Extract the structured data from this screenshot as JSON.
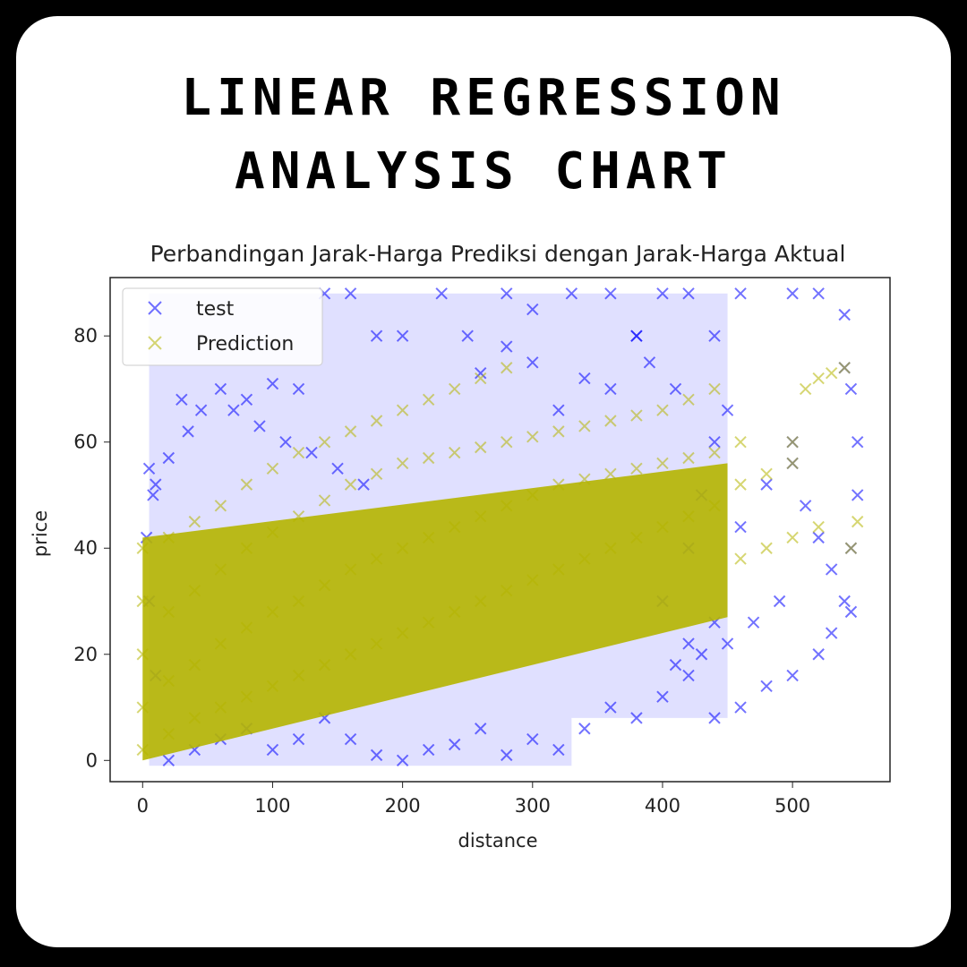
{
  "header": {
    "line1": "LINEAR REGRESSION",
    "line2": "ANALYSIS CHART"
  },
  "chart_data": {
    "type": "scatter",
    "title": "Perbandingan Jarak-Harga Prediksi dengan Jarak-Harga Aktual",
    "xlabel": "distance",
    "ylabel": "price",
    "xlim": [
      -25,
      575
    ],
    "ylim": [
      -4,
      91
    ],
    "xticks": [
      0,
      100,
      200,
      300,
      400,
      500
    ],
    "yticks": [
      0,
      20,
      40,
      60,
      80
    ],
    "marker": "x",
    "legend_position": "top-left",
    "series": [
      {
        "name": "test",
        "color": "#0000ff",
        "points": [
          [
            5,
            55
          ],
          [
            10,
            52
          ],
          [
            20,
            57
          ],
          [
            35,
            62
          ],
          [
            45,
            66
          ],
          [
            60,
            70
          ],
          [
            80,
            68
          ],
          [
            100,
            71
          ],
          [
            120,
            70
          ],
          [
            140,
            88
          ],
          [
            160,
            88
          ],
          [
            180,
            80
          ],
          [
            200,
            80
          ],
          [
            230,
            88
          ],
          [
            250,
            80
          ],
          [
            280,
            88
          ],
          [
            300,
            85
          ],
          [
            330,
            88
          ],
          [
            360,
            88
          ],
          [
            380,
            80
          ],
          [
            400,
            88
          ],
          [
            420,
            88
          ],
          [
            440,
            80
          ],
          [
            460,
            88
          ],
          [
            500,
            88
          ],
          [
            520,
            88
          ],
          [
            540,
            84
          ],
          [
            545,
            70
          ],
          [
            550,
            60
          ],
          [
            550,
            50
          ],
          [
            545,
            40
          ],
          [
            540,
            30
          ],
          [
            530,
            24
          ],
          [
            520,
            20
          ],
          [
            500,
            16
          ],
          [
            480,
            14
          ],
          [
            460,
            10
          ],
          [
            440,
            8
          ],
          [
            420,
            16
          ],
          [
            400,
            12
          ],
          [
            380,
            8
          ],
          [
            360,
            10
          ],
          [
            340,
            6
          ],
          [
            320,
            2
          ],
          [
            300,
            4
          ],
          [
            280,
            1
          ],
          [
            260,
            6
          ],
          [
            240,
            3
          ],
          [
            220,
            2
          ],
          [
            200,
            0
          ],
          [
            180,
            1
          ],
          [
            160,
            4
          ],
          [
            140,
            8
          ],
          [
            120,
            4
          ],
          [
            100,
            2
          ],
          [
            80,
            6
          ],
          [
            60,
            4
          ],
          [
            40,
            2
          ],
          [
            20,
            0
          ],
          [
            10,
            16
          ],
          [
            5,
            30
          ],
          [
            3,
            42
          ],
          [
            8,
            50
          ],
          [
            30,
            68
          ],
          [
            70,
            66
          ],
          [
            90,
            63
          ],
          [
            110,
            60
          ],
          [
            130,
            58
          ],
          [
            150,
            55
          ],
          [
            170,
            52
          ],
          [
            400,
            30
          ],
          [
            420,
            40
          ],
          [
            430,
            50
          ],
          [
            440,
            60
          ],
          [
            450,
            66
          ],
          [
            410,
            70
          ],
          [
            390,
            75
          ],
          [
            380,
            80
          ],
          [
            500,
            56
          ],
          [
            510,
            48
          ],
          [
            520,
            42
          ],
          [
            530,
            36
          ],
          [
            545,
            28
          ],
          [
            490,
            30
          ],
          [
            470,
            26
          ],
          [
            450,
            22
          ],
          [
            430,
            20
          ],
          [
            410,
            18
          ],
          [
            420,
            22
          ],
          [
            440,
            26
          ],
          [
            460,
            44
          ],
          [
            480,
            52
          ],
          [
            500,
            60
          ],
          [
            540,
            74
          ],
          [
            360,
            70
          ],
          [
            340,
            72
          ],
          [
            320,
            66
          ],
          [
            300,
            75
          ],
          [
            280,
            78
          ],
          [
            260,
            73
          ]
        ]
      },
      {
        "name": "Prediction",
        "color": "#b5b500",
        "points": [
          [
            0,
            2
          ],
          [
            0,
            10
          ],
          [
            0,
            20
          ],
          [
            0,
            30
          ],
          [
            0,
            40
          ],
          [
            20,
            5
          ],
          [
            20,
            15
          ],
          [
            20,
            28
          ],
          [
            20,
            42
          ],
          [
            40,
            8
          ],
          [
            40,
            18
          ],
          [
            40,
            32
          ],
          [
            40,
            45
          ],
          [
            60,
            10
          ],
          [
            60,
            22
          ],
          [
            60,
            36
          ],
          [
            60,
            48
          ],
          [
            80,
            12
          ],
          [
            80,
            25
          ],
          [
            80,
            40
          ],
          [
            80,
            52
          ],
          [
            100,
            14
          ],
          [
            100,
            28
          ],
          [
            100,
            43
          ],
          [
            100,
            55
          ],
          [
            120,
            16
          ],
          [
            120,
            30
          ],
          [
            120,
            46
          ],
          [
            120,
            58
          ],
          [
            140,
            18
          ],
          [
            140,
            33
          ],
          [
            140,
            49
          ],
          [
            140,
            60
          ],
          [
            160,
            20
          ],
          [
            160,
            36
          ],
          [
            160,
            52
          ],
          [
            160,
            62
          ],
          [
            180,
            22
          ],
          [
            180,
            38
          ],
          [
            180,
            54
          ],
          [
            180,
            64
          ],
          [
            200,
            24
          ],
          [
            200,
            40
          ],
          [
            200,
            56
          ],
          [
            200,
            66
          ],
          [
            220,
            26
          ],
          [
            220,
            42
          ],
          [
            220,
            57
          ],
          [
            220,
            68
          ],
          [
            240,
            28
          ],
          [
            240,
            44
          ],
          [
            240,
            58
          ],
          [
            240,
            70
          ],
          [
            260,
            30
          ],
          [
            260,
            46
          ],
          [
            260,
            59
          ],
          [
            260,
            72
          ],
          [
            280,
            32
          ],
          [
            280,
            48
          ],
          [
            280,
            60
          ],
          [
            280,
            74
          ],
          [
            300,
            34
          ],
          [
            300,
            50
          ],
          [
            300,
            61
          ],
          [
            320,
            36
          ],
          [
            320,
            52
          ],
          [
            320,
            62
          ],
          [
            340,
            38
          ],
          [
            340,
            53
          ],
          [
            340,
            63
          ],
          [
            360,
            40
          ],
          [
            360,
            54
          ],
          [
            360,
            64
          ],
          [
            380,
            42
          ],
          [
            380,
            55
          ],
          [
            380,
            65
          ],
          [
            400,
            44
          ],
          [
            400,
            56
          ],
          [
            400,
            66
          ],
          [
            420,
            46
          ],
          [
            420,
            57
          ],
          [
            420,
            68
          ],
          [
            440,
            48
          ],
          [
            440,
            58
          ],
          [
            440,
            70
          ],
          [
            460,
            38
          ],
          [
            460,
            52
          ],
          [
            460,
            60
          ],
          [
            480,
            40
          ],
          [
            480,
            54
          ],
          [
            500,
            42
          ],
          [
            500,
            56
          ],
          [
            500,
            60
          ],
          [
            520,
            44
          ],
          [
            520,
            72
          ],
          [
            530,
            73
          ],
          [
            540,
            74
          ],
          [
            545,
            40
          ],
          [
            550,
            45
          ],
          [
            510,
            70
          ]
        ]
      }
    ]
  }
}
